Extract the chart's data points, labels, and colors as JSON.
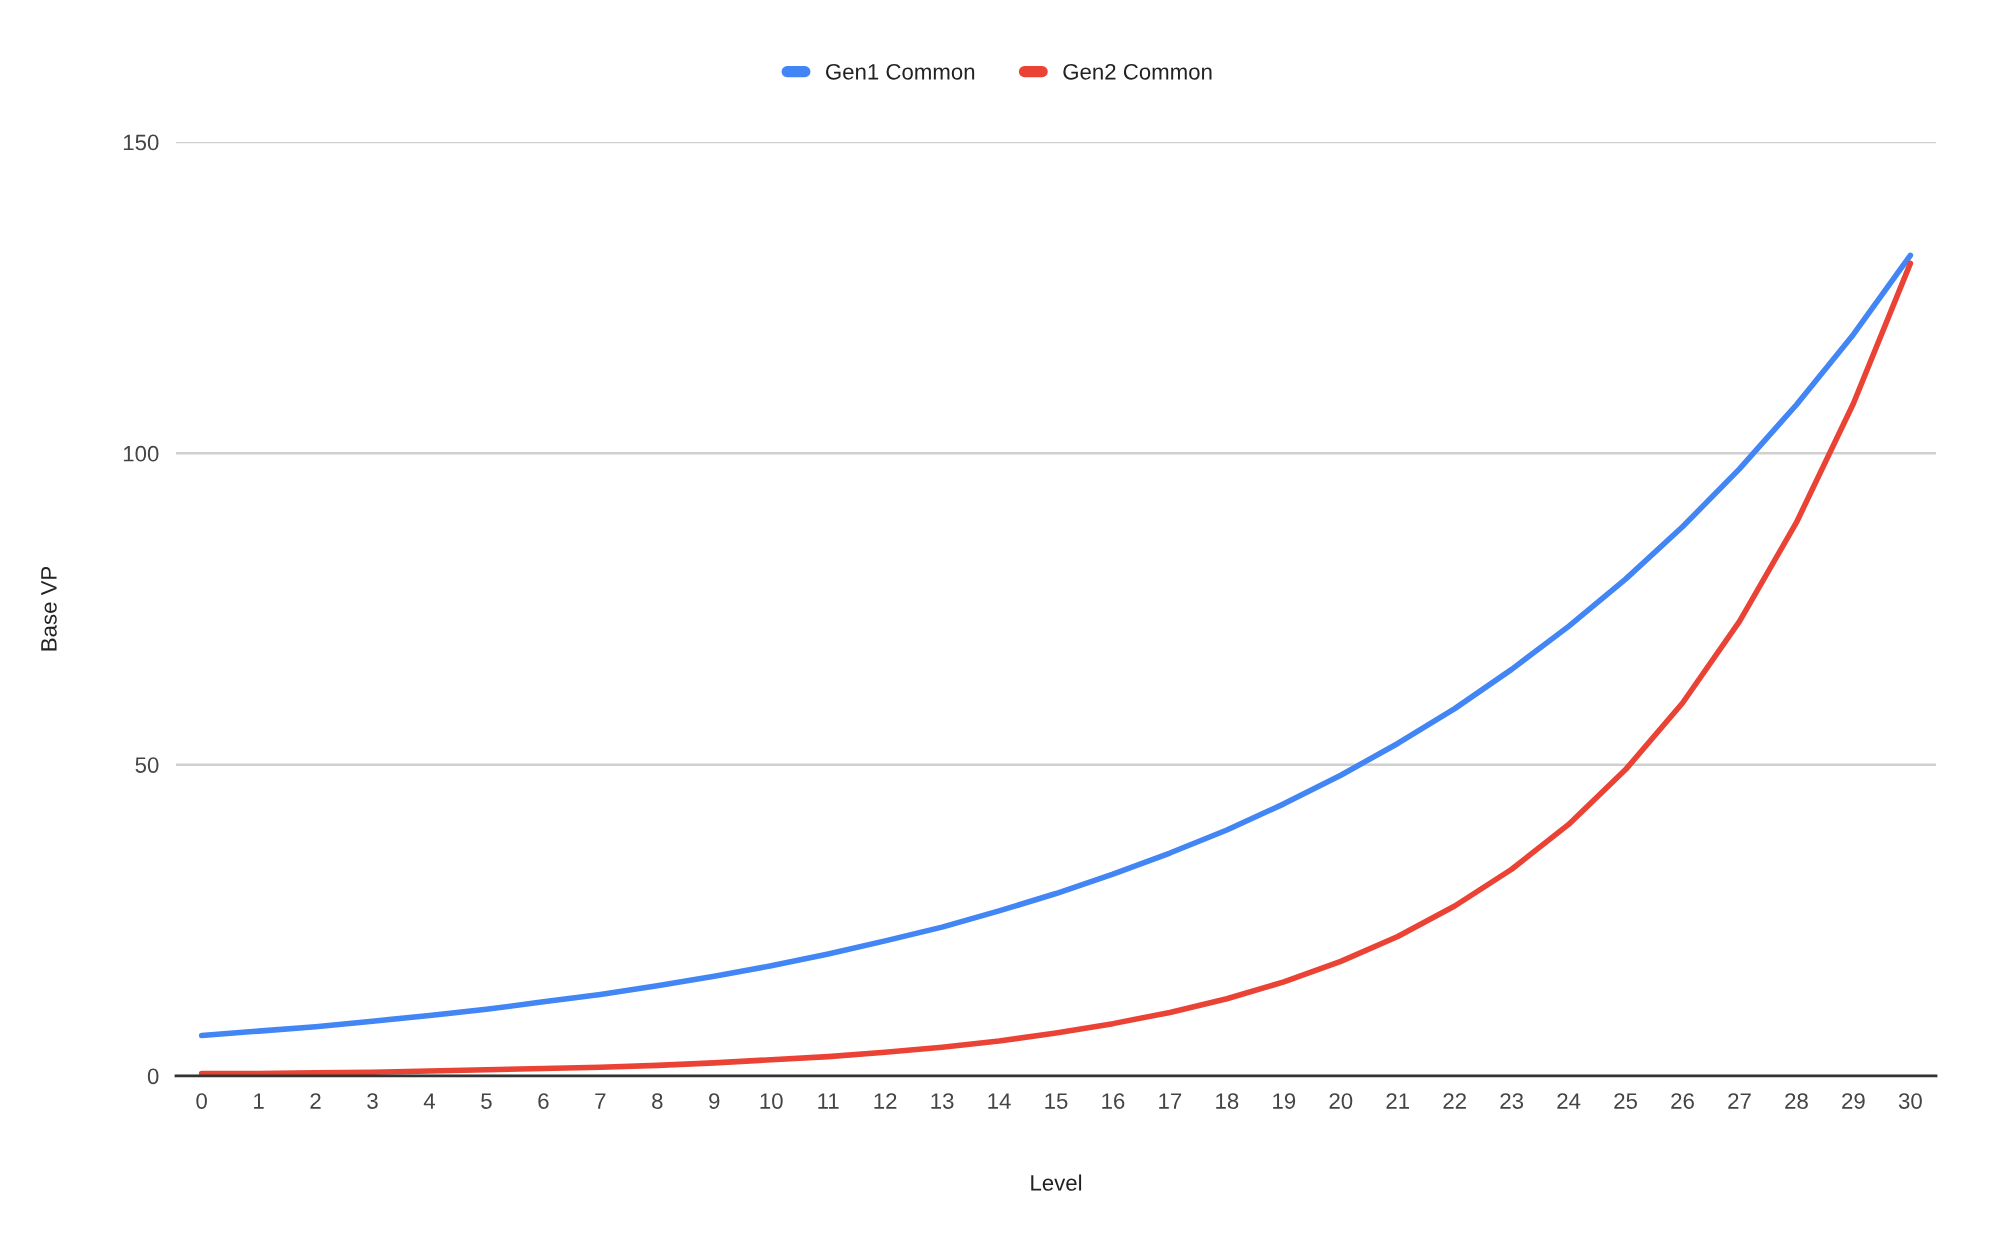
{
  "chart_data": {
    "type": "line",
    "xlabel": "Level",
    "ylabel": "Base VP",
    "categories": [
      "0",
      "1",
      "2",
      "3",
      "4",
      "5",
      "6",
      "7",
      "8",
      "9",
      "10",
      "11",
      "12",
      "13",
      "14",
      "15",
      "16",
      "17",
      "18",
      "19",
      "20",
      "21",
      "22",
      "23",
      "24",
      "25",
      "26",
      "27",
      "28",
      "29",
      "30"
    ],
    "series": [
      {
        "name": "Gen1 Common",
        "color": "#4285f4",
        "values": [
          6.5,
          7.2,
          7.9,
          8.8,
          9.7,
          10.7,
          11.9,
          13.1,
          14.5,
          16.0,
          17.7,
          19.6,
          21.7,
          23.9,
          26.5,
          29.3,
          32.4,
          35.8,
          39.5,
          43.7,
          48.3,
          53.4,
          59.0,
          65.3,
          72.2,
          79.8,
          88.2,
          97.5,
          107.8,
          119.1,
          131.8
        ]
      },
      {
        "name": "Gen2 Common",
        "color": "#ea4335",
        "values": [
          0.4,
          0.4,
          0.5,
          0.6,
          0.8,
          1.0,
          1.2,
          1.4,
          1.7,
          2.1,
          2.6,
          3.1,
          3.8,
          4.6,
          5.6,
          6.9,
          8.4,
          10.2,
          12.4,
          15.1,
          18.4,
          22.4,
          27.3,
          33.2,
          40.4,
          49.2,
          59.9,
          73.0,
          88.9,
          108.0,
          130.5
        ]
      }
    ],
    "ylim": [
      0,
      150
    ],
    "yticks": [
      0,
      50,
      100,
      150
    ],
    "grid": "y",
    "legend": "top"
  }
}
